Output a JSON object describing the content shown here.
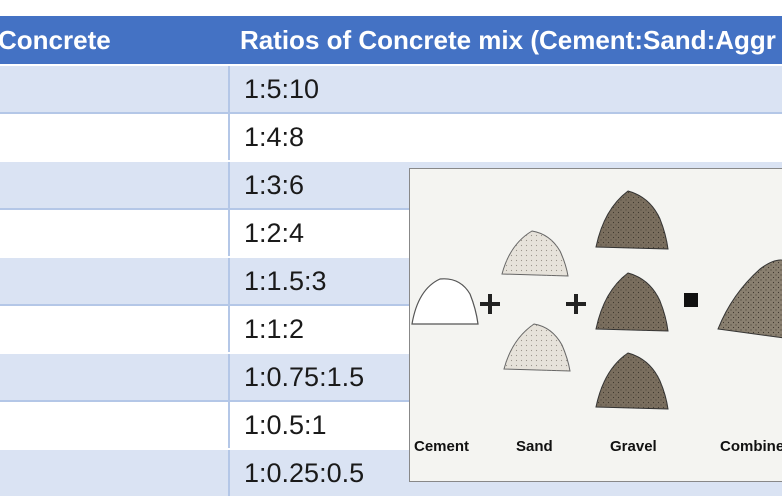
{
  "table": {
    "header": {
      "col1": "Concrete",
      "col2": "Ratios of Concrete mix (Cement:Sand:Aggr"
    },
    "rows": [
      {
        "ratio": "1:5:10"
      },
      {
        "ratio": "1:4:8"
      },
      {
        "ratio": "1:3:6"
      },
      {
        "ratio": "1:2:4"
      },
      {
        "ratio": "1:1.5:3"
      },
      {
        "ratio": "1:1:2"
      },
      {
        "ratio": "1:0.75:1.5"
      },
      {
        "ratio": "1:0.5:1"
      },
      {
        "ratio": "1:0.25:0.5"
      }
    ]
  },
  "figure": {
    "labels": {
      "cement": "Cement",
      "sand": "Sand",
      "gravel": "Gravel",
      "combined": "Combine c"
    },
    "colors": {
      "cement": "#ffffff",
      "sand": "#e6e2da",
      "gravel": "#7a6e5e",
      "combined": "#8a8070"
    }
  }
}
